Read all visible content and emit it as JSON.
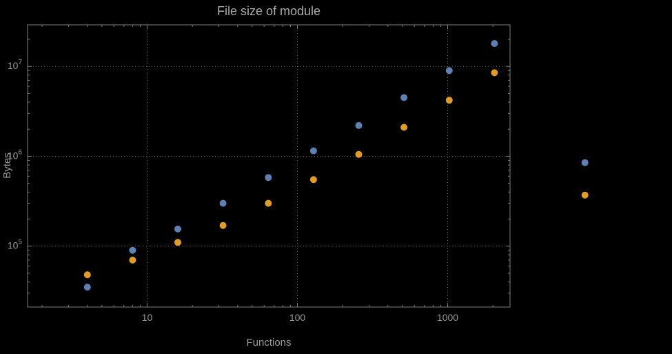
{
  "chart_data": {
    "type": "scatter",
    "title": "File size of module",
    "xlabel": "Functions",
    "ylabel": "Bytes",
    "x_scale": "log",
    "y_scale": "log",
    "grid": "dotted",
    "legend_position": "none",
    "x_range": [
      1.6,
      2600
    ],
    "y_range": [
      21000,
      29000000
    ],
    "x_ticks": [
      {
        "value": 10,
        "label": "10"
      },
      {
        "value": 100,
        "label": "100"
      },
      {
        "value": 1000,
        "label": "1000"
      }
    ],
    "y_ticks": [
      {
        "value": 100000,
        "label": "10^5",
        "mantissa": "10",
        "exponent": "5"
      },
      {
        "value": 1000000,
        "label": "10^6",
        "mantissa": "10",
        "exponent": "6"
      },
      {
        "value": 10000000,
        "label": "10^7",
        "mantissa": "10",
        "exponent": "7"
      }
    ],
    "series": [
      {
        "name": "blue-series",
        "color": "#5E81B5",
        "points": [
          [
            4,
            35000
          ],
          [
            8,
            90000
          ],
          [
            16,
            155000
          ],
          [
            32,
            300000
          ],
          [
            64,
            580000
          ],
          [
            128,
            1150000
          ],
          [
            256,
            2200000
          ],
          [
            512,
            4500000
          ],
          [
            1024,
            9000000
          ],
          [
            2048,
            18000000
          ],
          [
            8192,
            850000
          ]
        ]
      },
      {
        "name": "orange-series",
        "color": "#E19C24",
        "points": [
          [
            4,
            48000
          ],
          [
            8,
            70000
          ],
          [
            16,
            110000
          ],
          [
            32,
            170000
          ],
          [
            64,
            300000
          ],
          [
            128,
            550000
          ],
          [
            256,
            1050000
          ],
          [
            512,
            2100000
          ],
          [
            1024,
            4200000
          ],
          [
            2048,
            8500000
          ],
          [
            8192,
            370000
          ]
        ]
      }
    ]
  },
  "style": {
    "background": "#000000",
    "frame_color": "#7F7F7F",
    "grid_color": "#6B6B6B",
    "tick_label_color": "#9A9A9A",
    "title_color": "#ABABAB",
    "axis_label_color": "#9A9A9A"
  }
}
